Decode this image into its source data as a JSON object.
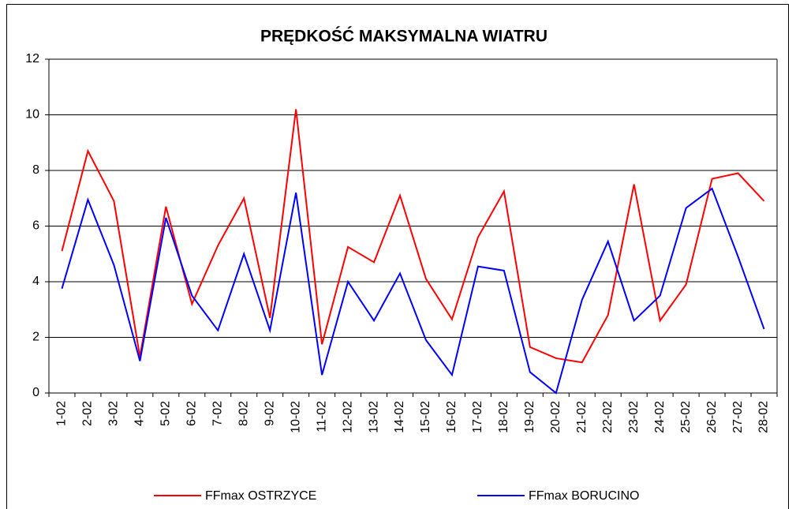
{
  "chart_data": {
    "type": "line",
    "title": "PRĘDKOŚĆ MAKSYMALNA WIATRU",
    "categories": [
      "1-02",
      "2-02",
      "3-02",
      "4-02",
      "5-02",
      "6-02",
      "7-02",
      "8-02",
      "9-02",
      "10-02",
      "11-02",
      "12-02",
      "13-02",
      "14-02",
      "15-02",
      "16-02",
      "17-02",
      "18-02",
      "19-02",
      "20-02",
      "21-02",
      "22-02",
      "23-02",
      "24-02",
      "25-02",
      "26-02",
      "27-02",
      "28-02"
    ],
    "series": [
      {
        "name": "FFmax OSTRZYCE",
        "color": "#ff0000",
        "values": [
          5.1,
          8.7,
          6.9,
          1.3,
          6.7,
          3.2,
          5.3,
          7.0,
          2.7,
          10.2,
          1.75,
          5.25,
          4.7,
          7.1,
          4.1,
          2.65,
          5.6,
          7.25,
          1.65,
          1.25,
          1.1,
          2.8,
          7.5,
          2.6,
          3.9,
          7.7,
          7.9,
          6.9
        ]
      },
      {
        "name": "FFmax BORUCINO",
        "color": "#0000ff",
        "values": [
          3.75,
          6.95,
          4.6,
          1.15,
          6.3,
          3.5,
          2.25,
          5.0,
          2.25,
          7.2,
          0.65,
          4.0,
          2.6,
          4.3,
          1.9,
          0.65,
          4.55,
          4.4,
          0.75,
          0.0,
          3.35,
          5.45,
          2.6,
          3.5,
          6.65,
          7.35,
          4.9,
          2.3
        ]
      }
    ],
    "ylim": [
      0,
      12
    ],
    "yticks": [
      0,
      2,
      4,
      6,
      8,
      10,
      12
    ],
    "grid": true,
    "legend": "bottom"
  }
}
